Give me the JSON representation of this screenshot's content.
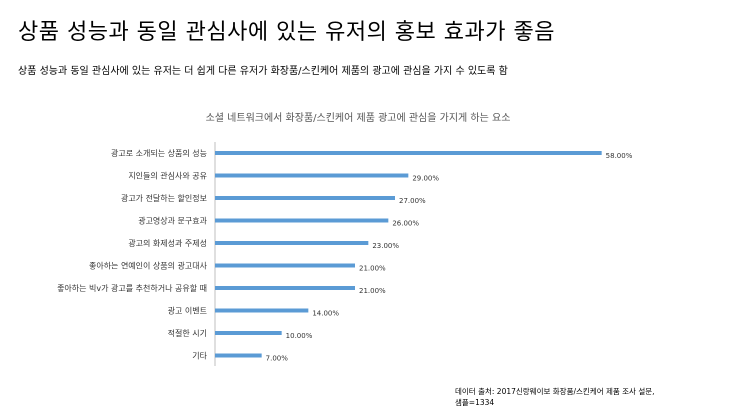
{
  "slide": {
    "title": "상품 성능과 동일 관심사에 있는 유저의 홍보 효과가 좋음",
    "subtitle": "상품 성능과 동일 관심사에 있는 유저는 더 쉽게 다른 유저가 화장품/스킨케어 제품의 광고에 관심을 가지 수 있도록 함",
    "source_line1": "데이터 출처: 2017신랑웨이보 화장품/스킨케어 제품 조사 설문,",
    "source_line2": "샘플=1334"
  },
  "colors": {
    "bar": "#5b9bd5",
    "axis": "#bfbfbf"
  },
  "chart_data": {
    "type": "bar",
    "orientation": "horizontal",
    "title": "소셜 네트워크에서 화장품/스킨케어 제품 광고에 관심을 가지게 하는 요소",
    "categories": [
      "광고로 소개되는 상품의 성능",
      "지인들의 관심사와 공유",
      "광고가 전달하는 할인정보",
      "광고영상과 문구효과",
      "광고의 화제성과 주제성",
      "좋아하는 연예인이 상품의 광고대사",
      "좋아하는 빅v가 광고를 추천하거나 공유할 때",
      "광고 이벤트",
      "적절한 시기",
      "기타"
    ],
    "values": [
      58,
      29,
      27,
      26,
      23,
      21,
      21,
      14,
      10,
      7
    ],
    "value_labels": [
      "58.00%",
      "29.00%",
      "27.00%",
      "26.00%",
      "23.00%",
      "21.00%",
      "21.00%",
      "14.00%",
      "10.00%",
      "7.00%"
    ],
    "xlim": [
      0,
      60
    ],
    "grid": false,
    "legend": "none"
  }
}
